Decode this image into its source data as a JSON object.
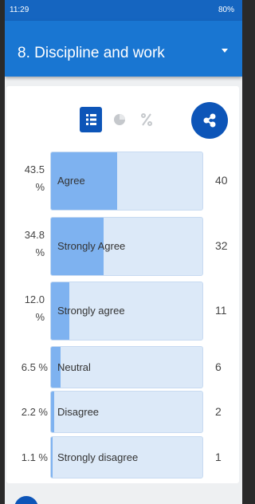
{
  "status_bar": {
    "time": "11:29",
    "battery": "80%"
  },
  "header": {
    "title": "8. Discipline and work"
  },
  "results": [
    {
      "percent": 43.5,
      "percent_label": "43.5 %",
      "label": "Agree",
      "count": 40
    },
    {
      "percent": 34.8,
      "percent_label": "34.8 %",
      "label": "Strongly Agree",
      "count": 32
    },
    {
      "percent": 12.0,
      "percent_label": "12.0 %",
      "label": "Strongly agree",
      "count": 11
    },
    {
      "percent": 6.5,
      "percent_label": "6.5 %",
      "label": "Neutral",
      "count": 6
    },
    {
      "percent": 2.2,
      "percent_label": "2.2 %",
      "label": "Disagree",
      "count": 2
    },
    {
      "percent": 1.1,
      "percent_label": "1.1 %",
      "label": "Strongly disagree",
      "count": 1
    }
  ]
}
